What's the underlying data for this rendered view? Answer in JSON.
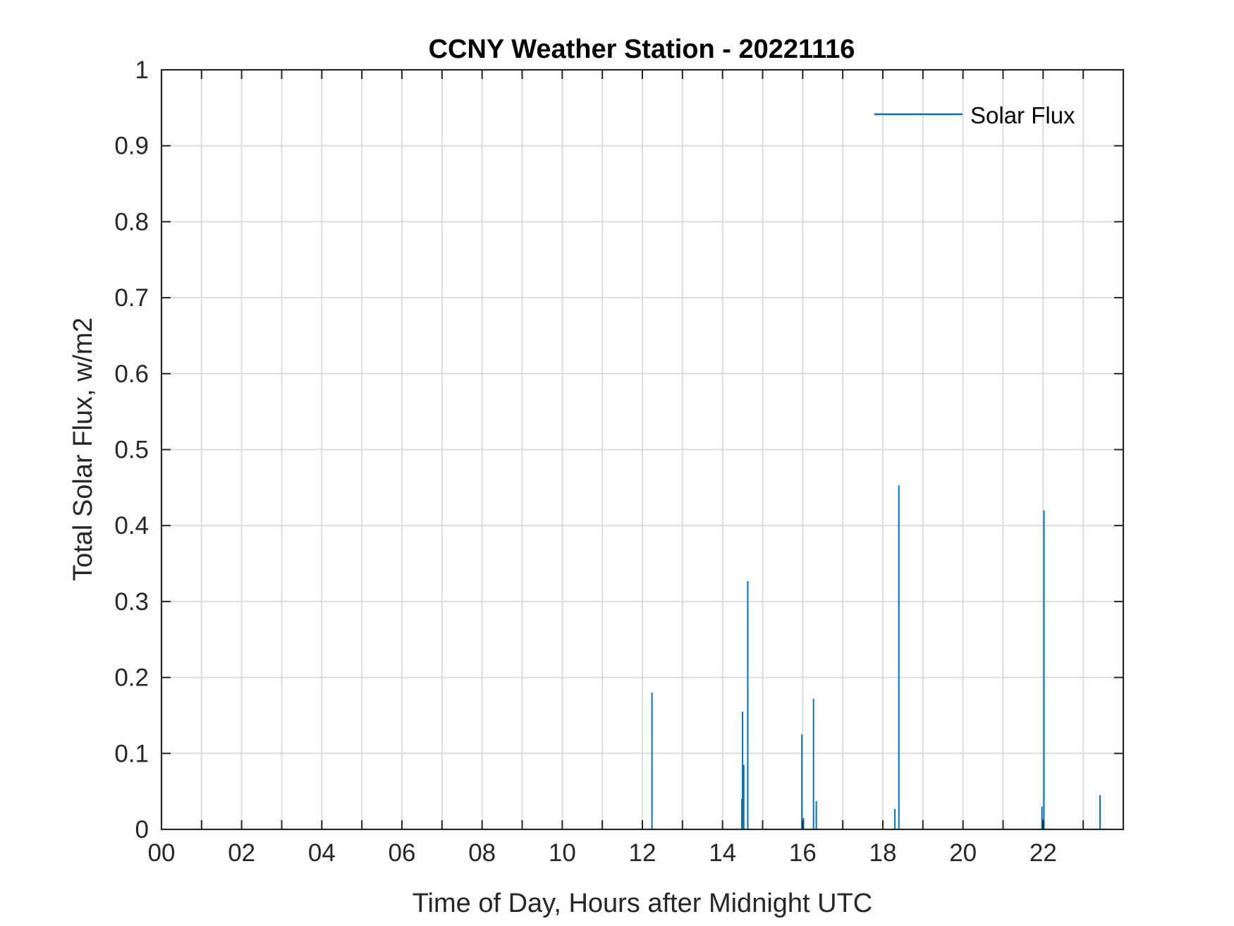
{
  "chart_data": {
    "type": "line",
    "title": "CCNY Weather Station - 20221116",
    "xlabel": "Time of Day, Hours after Midnight UTC",
    "ylabel": "Total Solar Flux, w/m2",
    "xlim": [
      0,
      24
    ],
    "ylim": [
      0,
      1
    ],
    "x_ticks": [
      0,
      2,
      4,
      6,
      8,
      10,
      12,
      14,
      16,
      18,
      20,
      22
    ],
    "x_tick_labels": [
      "00",
      "02",
      "04",
      "06",
      "08",
      "10",
      "12",
      "14",
      "16",
      "18",
      "20",
      "22"
    ],
    "x_minor_ticks": [
      1,
      3,
      5,
      7,
      9,
      11,
      13,
      15,
      17,
      19,
      21,
      23
    ],
    "y_ticks": [
      0,
      0.1,
      0.2,
      0.3,
      0.4,
      0.5,
      0.6,
      0.7,
      0.8,
      0.9,
      1
    ],
    "y_tick_labels": [
      "0",
      "0.1",
      "0.2",
      "0.3",
      "0.4",
      "0.5",
      "0.6",
      "0.7",
      "0.8",
      "0.9",
      "1"
    ],
    "grid": true,
    "legend_position": "top-right",
    "series": [
      {
        "name": "Solar Flux",
        "color": "#0072BD",
        "spikes": [
          {
            "x": 12.24,
            "y": 0.18
          },
          {
            "x": 14.48,
            "y": 0.04
          },
          {
            "x": 14.5,
            "y": 0.155
          },
          {
            "x": 14.53,
            "y": 0.085
          },
          {
            "x": 14.63,
            "y": 0.327
          },
          {
            "x": 15.98,
            "y": 0.125
          },
          {
            "x": 16.02,
            "y": 0.015
          },
          {
            "x": 16.27,
            "y": 0.172
          },
          {
            "x": 16.34,
            "y": 0.037
          },
          {
            "x": 18.3,
            "y": 0.027
          },
          {
            "x": 18.4,
            "y": 0.453
          },
          {
            "x": 21.97,
            "y": 0.03
          },
          {
            "x": 22.02,
            "y": 0.42
          },
          {
            "x": 22.0,
            "y": 0.013
          },
          {
            "x": 23.42,
            "y": 0.045
          }
        ]
      }
    ]
  }
}
